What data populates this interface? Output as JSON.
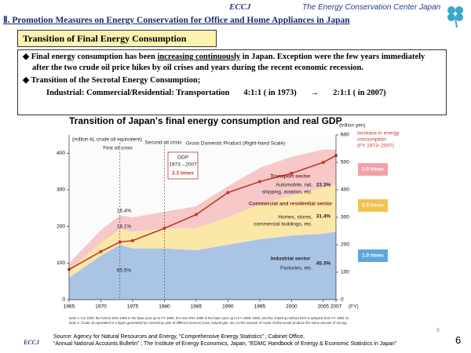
{
  "header": {
    "logo": "ECCJ",
    "org_name": "The Energy Conservation Center Japan",
    "title": "Ⅱ. Promotion Measures on Energy Conservation for Office and Home Appliances in Japan"
  },
  "section_title": "Transition of Final Energy Consumption",
  "bullets": [
    {
      "parts": [
        "Final energy consumption has been ",
        "increasing  continuously",
        " in Japan. Exception were the  few years immediately after the two crude oil price hikes by oil crises and years during the recent economic recession."
      ]
    },
    {
      "parts": [
        "Transition of the Secrotal  Energy Consumption;"
      ]
    }
  ],
  "ratio_line": {
    "sectors": "Industrial: Commercial/Residential: Transportation",
    "ratio_1973": "4:1:1 ( in 1973)",
    "arrow": "→",
    "ratio_2007": "2:1:1 ( in 2007)"
  },
  "chart_data": {
    "type": "stacked_area",
    "title": "Transition of Japan's final energy consumption and real GDP",
    "x": [
      1965,
      1970,
      1973,
      1975,
      1980,
      1985,
      1990,
      1995,
      2000,
      2005,
      2007
    ],
    "xlim": [
      1965,
      2007
    ],
    "xticks": [
      1965,
      1970,
      1975,
      1980,
      1985,
      1990,
      1995,
      2000,
      2005,
      2007
    ],
    "ylim": [
      0,
      450
    ],
    "yticks": [
      0,
      100,
      200,
      300,
      400
    ],
    "y2lim": [
      0,
      600
    ],
    "y2ticks": [
      0,
      100,
      200,
      300,
      400,
      500,
      600
    ],
    "grid": false,
    "series": [
      {
        "name": "Industrial sector",
        "color": "#aac4e6",
        "values": [
          60,
          120,
          150,
          140,
          140,
          135,
          150,
          165,
          175,
          180,
          186
        ]
      },
      {
        "name": "Commercial and residential sector",
        "color": "#fbe7a8",
        "values": [
          20,
          35,
          42,
          45,
          55,
          60,
          75,
          95,
          110,
          125,
          129
        ]
      },
      {
        "name": "Transport sector",
        "color": "#f6c8c8",
        "values": [
          20,
          35,
          38,
          40,
          45,
          60,
          85,
          100,
          105,
          105,
          95
        ]
      },
      {
        "name": "Gross Domestic Product (Right-hand Scale)",
        "type": "line",
        "axis": "y2",
        "color": "#c0392b",
        "values": [
          110,
          175,
          210,
          215,
          260,
          310,
          390,
          430,
          460,
          500,
          525
        ]
      }
    ],
    "annotations": [
      "(million kL crude oil equivalent)",
      "(trillion yen)",
      "First oil crisis",
      "Second oil crisis",
      "GDP",
      "1973→2007",
      "2.3 times",
      "16.4%",
      "18.1%",
      "65.5%",
      "Automobile, rail,",
      "shipping, aviation, etc.",
      "23.3%",
      "Homes, stores,",
      "commercial buildings, etc.",
      "31.4%",
      "Factories, etc.",
      "45.3%",
      "Increase in energy",
      "consumption",
      "(FY 1973–2007)",
      "2.0 times",
      "2.5 times",
      "1.0 times",
      "(FY)"
    ]
  },
  "notes": [
    "Note 1: For GDP, the former SNA 1990 is the base year up to FY 1980, the new SNA 1995 is the base year up to FY 1980–1993, and the chaining method SNA is adopted from FY 1994 on.",
    "Note 2: Crude oil equivalent is a figure generated by converting units of different sources (coal, natural gas, etc.) to the amount of crude oil that would produce the same amount of energy."
  ],
  "source": [
    "Source: Agency for Natural Resources and Energy, “Comprehensive Energy Statistics” ;  Cabinet Office,",
    "“Annual National Accounts Bulletin” ; The Institute of Energy Economics, Japan, “EDMC Handbook of Energy & Economic Statistics in Japan”"
  ],
  "footer": {
    "logo": "ECCJ",
    "page": "6",
    "page_small": "6"
  }
}
